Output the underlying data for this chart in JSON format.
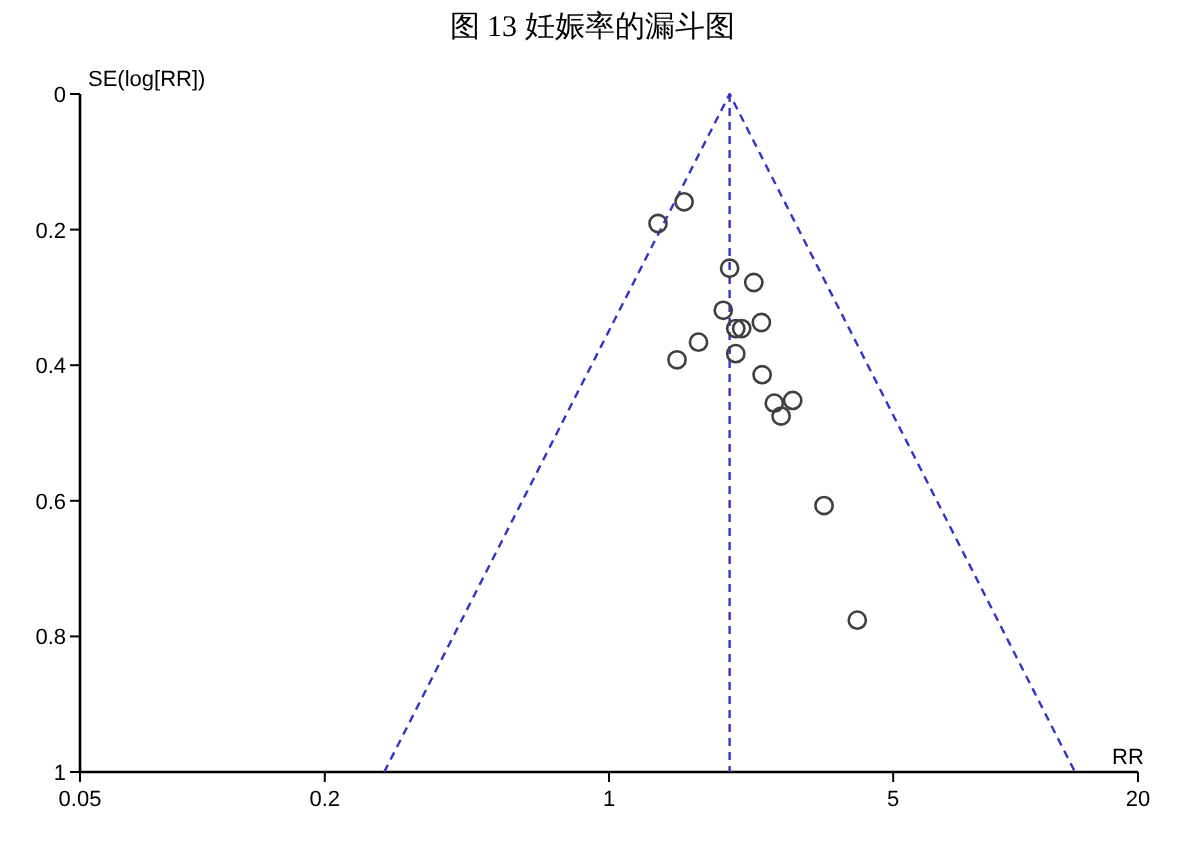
{
  "chart_data": {
    "type": "scatter",
    "title": "图 13 妊娠率的漏斗图",
    "xlabel": "RR",
    "ylabel": "SE(log[RR])",
    "log": "x",
    "xlim": [
      0.05,
      20
    ],
    "xticks": [
      0.05,
      0.2,
      1,
      5,
      20
    ],
    "ylim": [
      1,
      0
    ],
    "yticks": [
      0,
      0.2,
      0.4,
      0.6,
      0.8,
      1
    ],
    "grid": false,
    "series": [
      {
        "type": "line",
        "color": "#3333cc",
        "line_style": "dashed",
        "marker": "none",
        "x": [
          0.28,
          1.98,
          14
        ],
        "values": [
          1,
          0,
          1
        ]
      },
      {
        "color": "#404040",
        "marker": "circle",
        "x": [
          1.53,
          1.32,
          1.98,
          2.27,
          1.91,
          2.37,
          2.05,
          2.12,
          1.66,
          1.47,
          2.05,
          2.38,
          2.83,
          2.55,
          2.65,
          3.38,
          4.08
        ],
        "values": [
          0.159,
          0.191,
          0.257,
          0.278,
          0.319,
          0.337,
          0.346,
          0.346,
          0.366,
          0.392,
          0.383,
          0.414,
          0.452,
          0.456,
          0.475,
          0.607,
          0.776
        ]
      }
    ],
    "ref_lines": [
      {
        "axis": "x",
        "value": 1.98,
        "color": "#3333cc",
        "line_style": "dashed"
      }
    ]
  }
}
